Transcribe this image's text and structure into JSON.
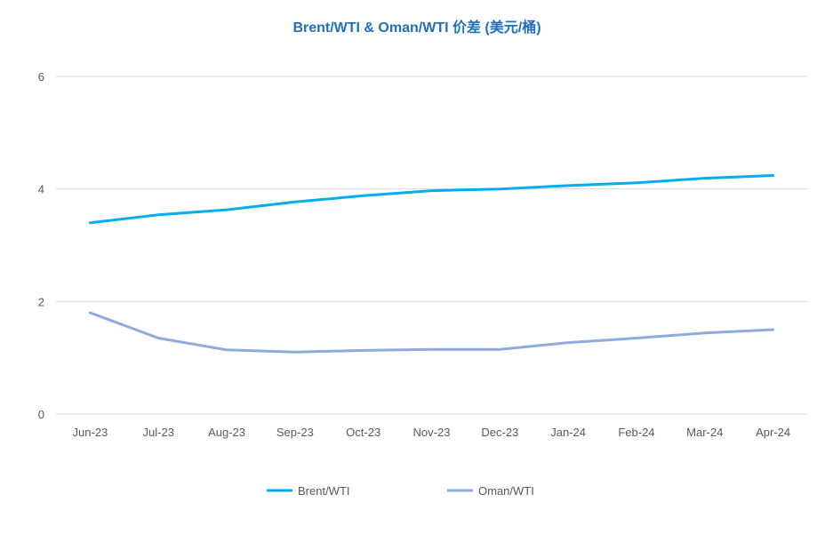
{
  "chart_data": {
    "type": "line",
    "title": "Brent/WTI & Oman/WTI 价差 (美元/桶)",
    "xlabel": "",
    "ylabel": "",
    "categories": [
      "Jun-23",
      "Jul-23",
      "Aug-23",
      "Sep-23",
      "Oct-23",
      "Nov-23",
      "Dec-23",
      "Jan-24",
      "Feb-24",
      "Mar-24",
      "Apr-24"
    ],
    "ylim": [
      0,
      6
    ],
    "yticks": [
      0,
      2,
      4,
      6
    ],
    "grid": true,
    "legend_position": "bottom",
    "series": [
      {
        "name": "Brent/WTI",
        "color": "#00aeef",
        "values": [
          3.4,
          3.54,
          3.63,
          3.77,
          3.88,
          3.97,
          4.0,
          4.06,
          4.11,
          4.19,
          4.24
        ]
      },
      {
        "name": "Oman/WTI",
        "color": "#8faadc",
        "values": [
          1.8,
          1.35,
          1.14,
          1.1,
          1.13,
          1.15,
          1.15,
          1.27,
          1.35,
          1.44,
          1.5
        ]
      }
    ]
  }
}
